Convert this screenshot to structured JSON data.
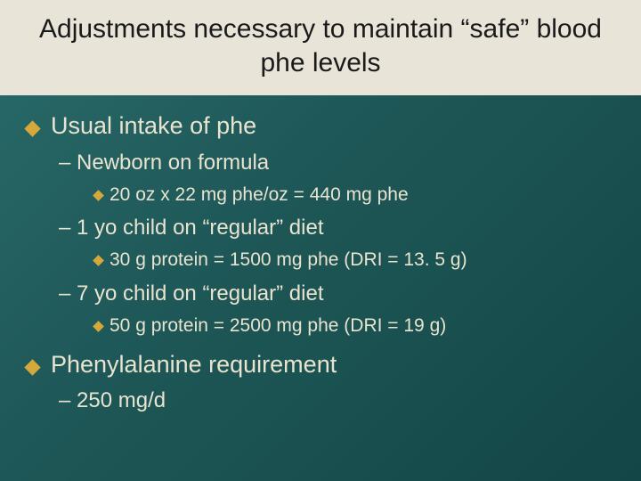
{
  "slide": {
    "background_gradient": [
      "#2a6b6b",
      "#1f5858",
      "#134646"
    ],
    "title_bg": "#e8e4d8",
    "title_color": "#1a1a1a",
    "body_text_color": "#e8e4d0",
    "bullet_color": "#d4a83a",
    "title_fontsize": 30,
    "l1_fontsize": 27,
    "l2_fontsize": 24,
    "l3_fontsize": 21
  },
  "title": "Adjustments necessary to maintain “safe” blood phe levels",
  "b1": {
    "text": "Usual intake of phe",
    "sub1": {
      "text": "– Newborn on formula",
      "detail": "20 oz x 22 mg phe/oz = 440 mg phe"
    },
    "sub2": {
      "text": "– 1 yo child on “regular” diet",
      "detail": "30 g protein = 1500 mg phe (DRI = 13. 5 g)"
    },
    "sub3": {
      "text": "– 7 yo child on “regular” diet",
      "detail": "50 g protein = 2500 mg phe (DRI = 19 g)"
    }
  },
  "b2": {
    "text": "Phenylalanine requirement",
    "sub1": {
      "text": "– 250 mg/d"
    }
  }
}
